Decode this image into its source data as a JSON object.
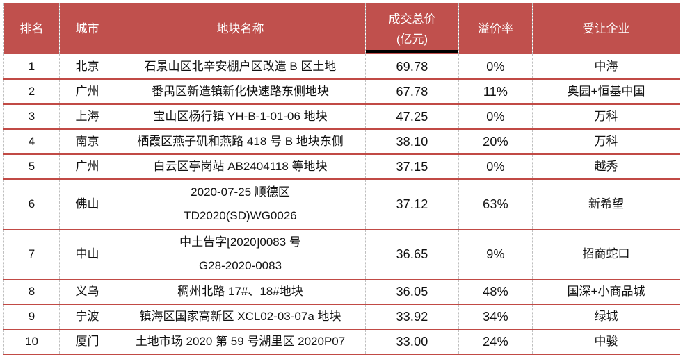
{
  "colors": {
    "header_bg": "#C0504D",
    "header_text": "#FFFFFF",
    "row_line": "#C14A45",
    "dash_line": "#BFBFBF",
    "body_text": "#111111",
    "underline": "#000000",
    "page_bg": "#FFFFFF"
  },
  "table": {
    "headers": {
      "rank": "排名",
      "city": "城市",
      "name": "地块名称",
      "price": "成交总价\n(亿元)",
      "premium": "溢价率",
      "buyer": "受让企业"
    },
    "rows": [
      {
        "rank": "1",
        "city": "北京",
        "name": "石景山区北辛安棚户区改造 B 区土地",
        "price": "69.78",
        "premium": "0%",
        "buyer": "中海"
      },
      {
        "rank": "2",
        "city": "广州",
        "name": "番禺区新造镇新化快速路东侧地块",
        "price": "67.78",
        "premium": "11%",
        "buyer": "奥园+恒基中国"
      },
      {
        "rank": "3",
        "city": "上海",
        "name": "宝山区杨行镇 YH-B-1-01-06 地块",
        "price": "47.25",
        "premium": "0%",
        "buyer": "万科"
      },
      {
        "rank": "4",
        "city": "南京",
        "name": "栖霞区燕子矶和燕路 418 号 B 地块东侧",
        "price": "38.10",
        "premium": "20%",
        "buyer": "万科"
      },
      {
        "rank": "5",
        "city": "广州",
        "name": "白云区亭岗站 AB2404118 等地块",
        "price": "37.15",
        "premium": "0%",
        "buyer": "越秀"
      },
      {
        "rank": "6",
        "city": "佛山",
        "name": "2020-07-25 顺德区\nTD2020(SD)WG0026",
        "price": "37.12",
        "premium": "63%",
        "buyer": "新希望"
      },
      {
        "rank": "7",
        "city": "中山",
        "name": "中土告字[2020]0083 号\nG28-2020-0083",
        "price": "36.65",
        "premium": "9%",
        "buyer": "招商蛇口"
      },
      {
        "rank": "8",
        "city": "义乌",
        "name": "稠州北路 17#、18#地块",
        "price": "36.05",
        "premium": "48%",
        "buyer": "国深+小商品城"
      },
      {
        "rank": "9",
        "city": "宁波",
        "name": "镇海区国家高新区 XCL02-03-07a 地块",
        "price": "33.92",
        "premium": "34%",
        "buyer": "绿城"
      },
      {
        "rank": "10",
        "city": "厦门",
        "name": "土地市场 2020 第 59 号湖里区 2020P07",
        "price": "33.00",
        "premium": "24%",
        "buyer": "中骏"
      }
    ]
  }
}
